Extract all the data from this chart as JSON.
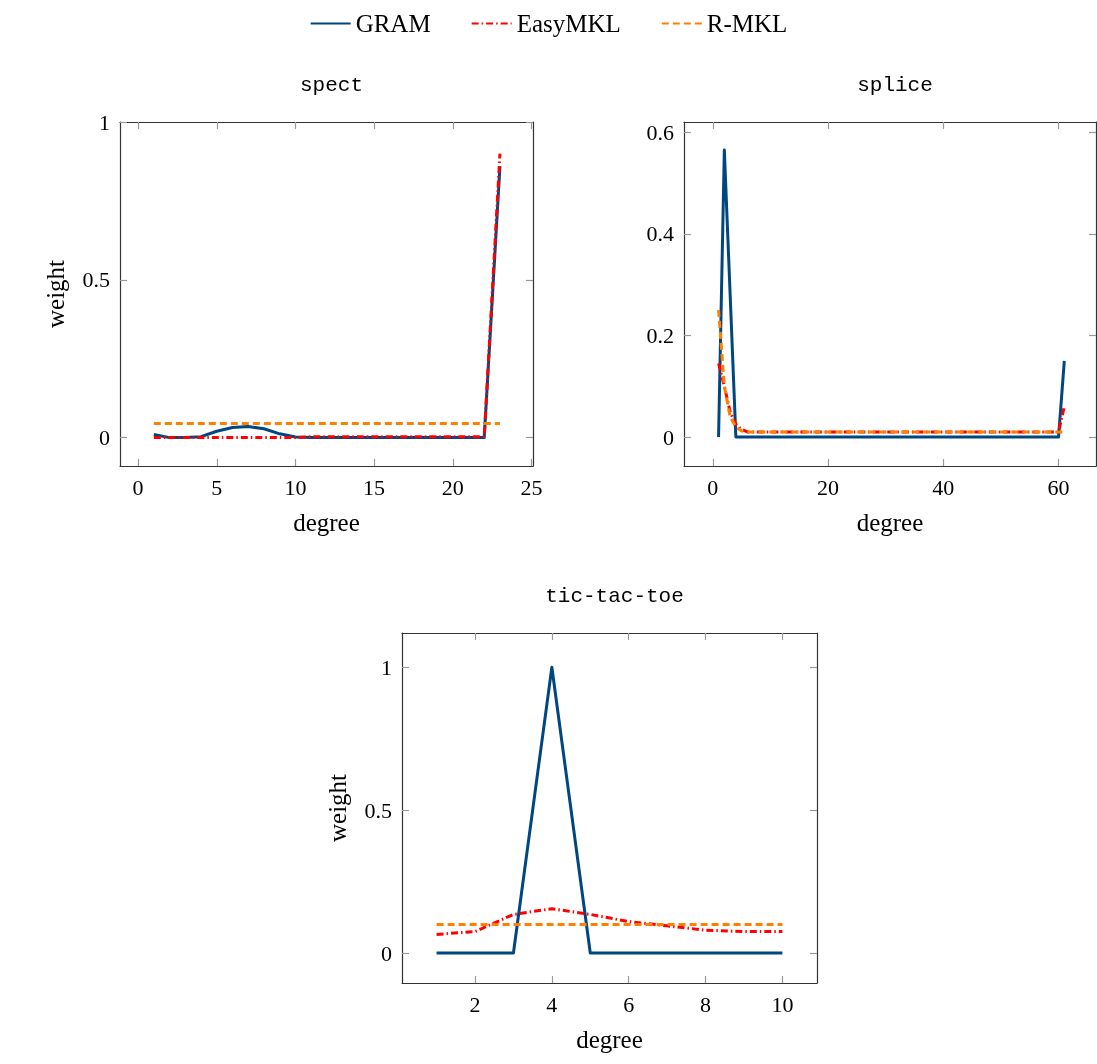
{
  "chart_data": [
    {
      "type": "line",
      "title": "spect",
      "xlabel": "degree",
      "ylabel": "weight",
      "legend": "top",
      "grid": false,
      "marker": "none",
      "x": [
        1,
        2,
        3,
        4,
        5,
        6,
        7,
        8,
        9,
        10,
        11,
        12,
        13,
        14,
        15,
        16,
        17,
        18,
        19,
        20,
        21,
        22,
        23
      ],
      "xlim": [
        -1.15,
        25.1
      ],
      "xticks": [
        0,
        5,
        10,
        15,
        20,
        25
      ],
      "ylim": [
        -0.09,
        1
      ],
      "yticks": [
        0,
        0.5,
        1
      ],
      "series": [
        {
          "name": "GRAM",
          "color": "#004680",
          "line_style": "solid",
          "values": [
            0.01,
            0,
            0,
            0.003,
            0.02,
            0.032,
            0.035,
            0.028,
            0.012,
            0.002,
            0,
            0,
            0,
            0,
            0,
            0,
            0,
            0,
            0,
            0,
            0,
            0,
            0.86
          ]
        },
        {
          "name": "EasyMKL",
          "color": "#ff0000",
          "line_style": "dashdot",
          "values": [
            0,
            0,
            0,
            0,
            0,
            0,
            0,
            0,
            0,
            0,
            0.003,
            0.003,
            0.003,
            0.003,
            0.003,
            0.003,
            0.003,
            0.003,
            0.003,
            0.003,
            0.003,
            0.003,
            0.9
          ]
        },
        {
          "name": "R-MKL",
          "color": "#ff8000",
          "line_style": "dashed",
          "values": [
            0.045,
            0.045,
            0.045,
            0.045,
            0.045,
            0.045,
            0.045,
            0.045,
            0.045,
            0.045,
            0.045,
            0.045,
            0.045,
            0.045,
            0.045,
            0.045,
            0.045,
            0.045,
            0.045,
            0.045,
            0.045,
            0.045,
            0.045
          ]
        }
      ]
    },
    {
      "type": "line",
      "title": "splice",
      "xlabel": "degree",
      "grid": false,
      "marker": "none",
      "xlim": [
        -5,
        66.5
      ],
      "xticks": [
        0,
        20,
        40,
        60
      ],
      "ylim": [
        -0.057,
        0.62
      ],
      "yticks": [
        0,
        0.2,
        0.4,
        0.6
      ],
      "series": [
        {
          "color": "#004680",
          "line_style": "solid",
          "x": [
            1,
            2,
            4,
            60,
            61
          ],
          "values": [
            0,
            0.565,
            0,
            0,
            0.15
          ]
        },
        {
          "color": "#ff0000",
          "line_style": "dashdot",
          "x": [
            1,
            2,
            3,
            4,
            5,
            6,
            60,
            61
          ],
          "values": [
            0.145,
            0.1,
            0.05,
            0.025,
            0.015,
            0.01,
            0.01,
            0.06
          ]
        },
        {
          "color": "#ff8000",
          "line_style": "dashed",
          "x": [
            1,
            2,
            3,
            4,
            5,
            6,
            61
          ],
          "values": [
            0.25,
            0.1,
            0.04,
            0.02,
            0.012,
            0.01,
            0.01
          ]
        }
      ]
    },
    {
      "type": "line",
      "title": "tic-tac-toe",
      "xlabel": "degree",
      "ylabel": "weight",
      "grid": false,
      "marker": "none",
      "x": [
        1,
        2,
        3,
        4,
        5,
        6,
        7,
        8,
        9,
        10
      ],
      "xlim": [
        0.1,
        10.9
      ],
      "xticks": [
        2,
        4,
        6,
        8,
        10
      ],
      "ylim": [
        -0.105,
        1.12
      ],
      "yticks": [
        0,
        0.5,
        1
      ],
      "series": [
        {
          "color": "#004680",
          "line_style": "solid",
          "values": [
            0,
            0,
            0,
            1,
            0,
            0,
            0,
            0,
            0,
            0
          ]
        },
        {
          "color": "#ff0000",
          "line_style": "dashdot",
          "values": [
            0.065,
            0.075,
            0.135,
            0.155,
            0.135,
            0.11,
            0.095,
            0.08,
            0.075,
            0.075
          ]
        },
        {
          "color": "#ff8000",
          "line_style": "dashed",
          "values": [
            0.1,
            0.1,
            0.1,
            0.1,
            0.1,
            0.1,
            0.1,
            0.1,
            0.1,
            0.1
          ]
        }
      ]
    }
  ]
}
